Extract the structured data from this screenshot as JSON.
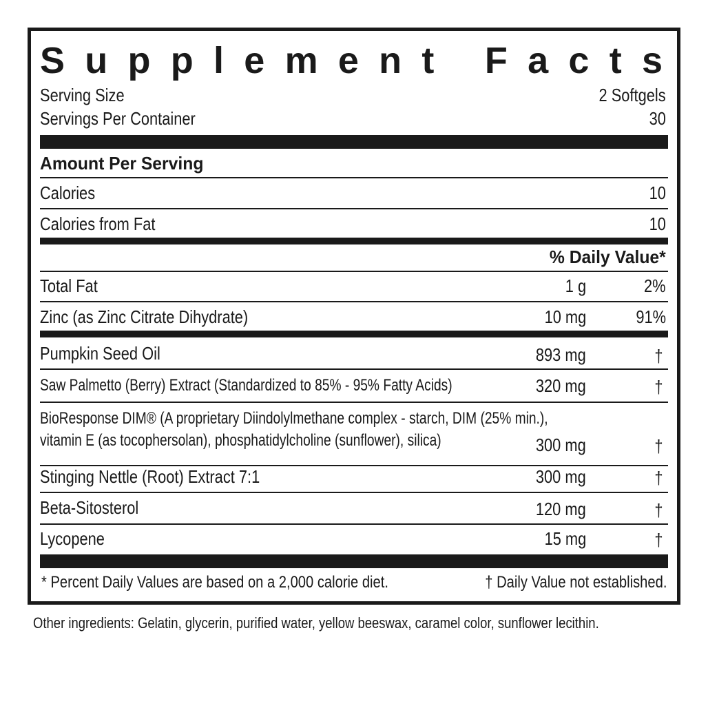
{
  "title": "Supplement Facts",
  "serving": [
    {
      "label": "Serving Size",
      "value": "2 Softgels"
    },
    {
      "label": "Servings Per Container",
      "value": "30"
    }
  ],
  "amount_header": "Amount Per Serving",
  "calories": [
    {
      "label": "Calories",
      "value": "10"
    },
    {
      "label": "Calories from Fat",
      "value": "10"
    }
  ],
  "dv_header": "% Daily Value*",
  "nutrients": [
    {
      "name": "Total Fat",
      "amount": "1 g",
      "dv": "2%"
    },
    {
      "name": "Zinc (as Zinc Citrate Dihydrate)",
      "amount": "10 mg",
      "dv": "91%"
    }
  ],
  "ingredients": [
    {
      "name": [
        "Pumpkin Seed Oil"
      ],
      "amount": "893 mg",
      "dv": "†"
    },
    {
      "name": [
        "Saw Palmetto (Berry) Extract (Standardized to 85% - 95% Fatty Acids)"
      ],
      "amount": "320 mg",
      "dv": "†"
    },
    {
      "name": [
        "BioResponse DIM® (A proprietary Diindolylmethane complex - starch, DIM (25% min.),",
        "vitamin E (as tocophersolan), phosphatidylcholine (sunflower), silica)"
      ],
      "amount": "300 mg",
      "dv": "†"
    },
    {
      "name": [
        "Stinging Nettle (Root) Extract 7:1"
      ],
      "amount": "300 mg",
      "dv": "†"
    },
    {
      "name": [
        "Beta-Sitosterol"
      ],
      "amount": "120 mg",
      "dv": "†"
    },
    {
      "name": [
        "Lycopene"
      ],
      "amount": "15 mg",
      "dv": "†"
    }
  ],
  "footnotes": [
    "* Percent Daily Values are based on a 2,000 calorie diet.",
    "† Daily Value not established."
  ],
  "other_ingredients": "Other ingredients: Gelatin, glycerin, purified water, yellow beeswax, caramel color, sunflower lecithin."
}
